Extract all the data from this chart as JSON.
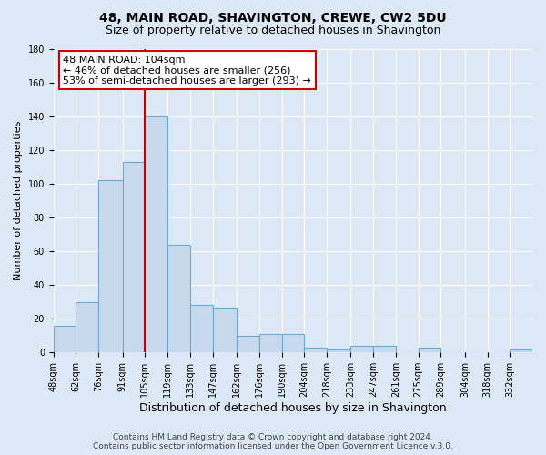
{
  "title": "48, MAIN ROAD, SHAVINGTON, CREWE, CW2 5DU",
  "subtitle": "Size of property relative to detached houses in Shavington",
  "xlabel": "Distribution of detached houses by size in Shavington",
  "ylabel": "Number of detached properties",
  "bar_labels": [
    "48sqm",
    "62sqm",
    "76sqm",
    "91sqm",
    "105sqm",
    "119sqm",
    "133sqm",
    "147sqm",
    "162sqm",
    "176sqm",
    "190sqm",
    "204sqm",
    "218sqm",
    "233sqm",
    "247sqm",
    "261sqm",
    "275sqm",
    "289sqm",
    "304sqm",
    "318sqm",
    "332sqm"
  ],
  "bar_values": [
    16,
    30,
    102,
    113,
    140,
    64,
    28,
    26,
    10,
    11,
    11,
    3,
    2,
    4,
    4,
    0,
    3,
    0,
    0,
    0,
    2
  ],
  "bin_edges": [
    48,
    62,
    76,
    91,
    105,
    119,
    133,
    147,
    162,
    176,
    190,
    204,
    218,
    233,
    247,
    261,
    275,
    289,
    304,
    318,
    332,
    346
  ],
  "bar_color": "#c8d9ee",
  "bar_edgecolor": "#6aaad4",
  "ylim": [
    0,
    180
  ],
  "yticks": [
    0,
    20,
    40,
    60,
    80,
    100,
    120,
    140,
    160,
    180
  ],
  "property_line_x": 105,
  "property_line_color": "#cc0000",
  "annotation_text": "48 MAIN ROAD: 104sqm\n← 46% of detached houses are smaller (256)\n53% of semi-detached houses are larger (293) →",
  "annotation_box_facecolor": "#ffffff",
  "annotation_box_edgecolor": "#cc0000",
  "footer_line1": "Contains HM Land Registry data © Crown copyright and database right 2024.",
  "footer_line2": "Contains public sector information licensed under the Open Government Licence v.3.0.",
  "title_fontsize": 10,
  "subtitle_fontsize": 9,
  "xlabel_fontsize": 9,
  "ylabel_fontsize": 8,
  "tick_fontsize": 7,
  "footer_fontsize": 6.5,
  "annotation_fontsize": 8,
  "background_color": "#dce8f5",
  "plot_background_color": "#dce8f5",
  "grid_color": "#ffffff"
}
